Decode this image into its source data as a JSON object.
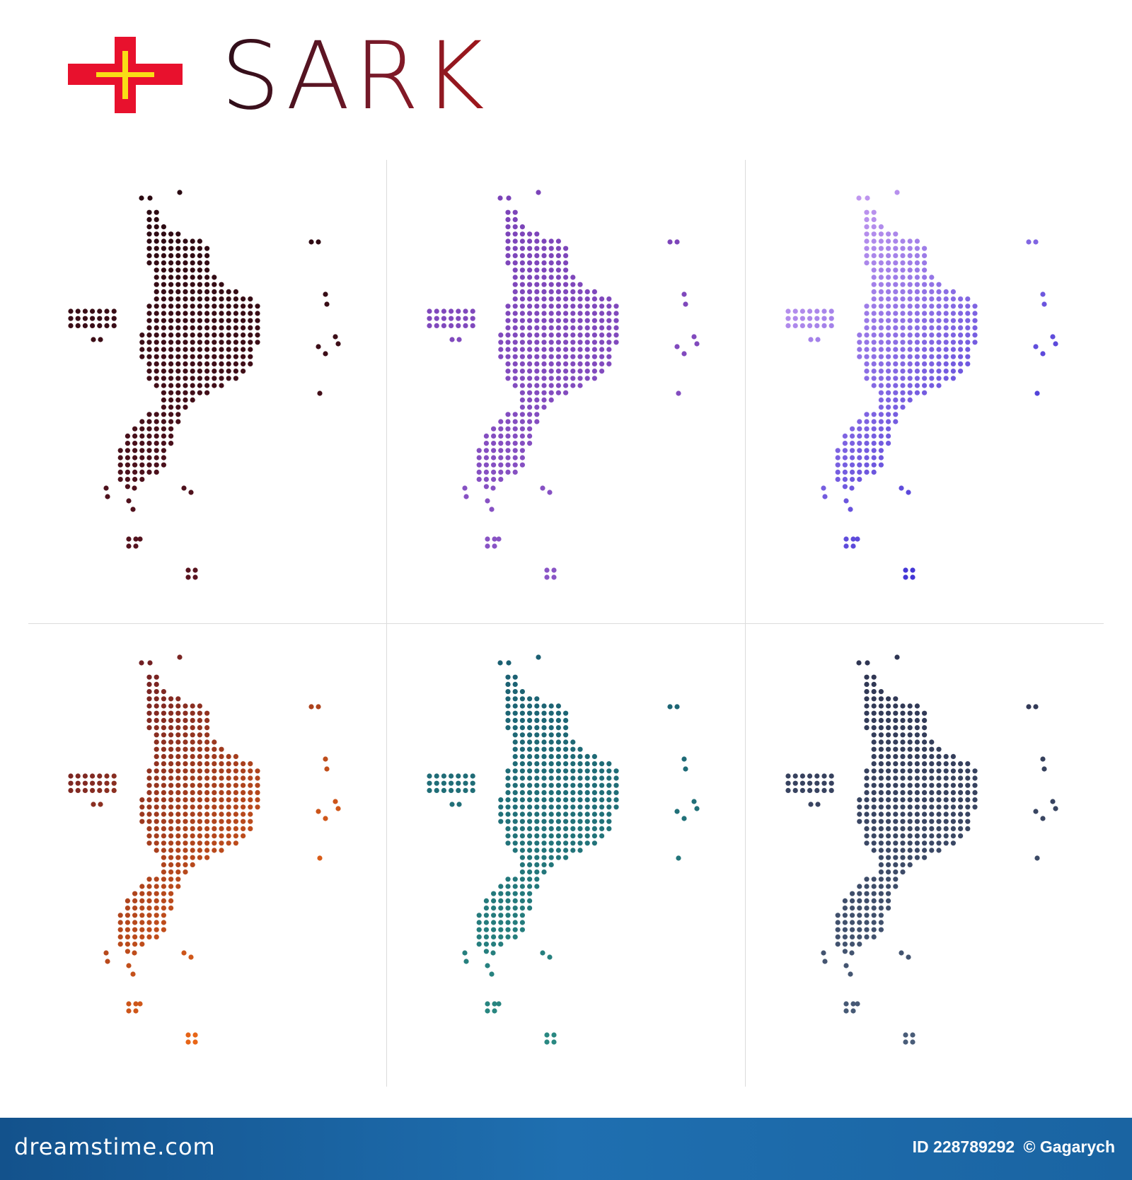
{
  "title": "SARK",
  "flag": {
    "icon": "guernsey-flag-icon",
    "colors": {
      "field": "#ffffff",
      "cross": "#e8112d",
      "inner_cross": "#f9dd16"
    }
  },
  "variants": [
    {
      "name": "dark-maroon",
      "colors": [
        "#2a0a12",
        "#5a1420"
      ],
      "gradient_direction": "vertical"
    },
    {
      "name": "purple",
      "colors": [
        "#7b43b8",
        "#8a55c6"
      ],
      "gradient_direction": "vertical"
    },
    {
      "name": "violet-blue",
      "colors": [
        "#d7a9f3",
        "#3a2fd4"
      ],
      "gradient_direction": "diagonal"
    },
    {
      "name": "maroon-orange",
      "colors": [
        "#5b1326",
        "#f06a16"
      ],
      "gradient_direction": "diagonal"
    },
    {
      "name": "teal",
      "colors": [
        "#1b5f72",
        "#2a8a82"
      ],
      "gradient_direction": "vertical"
    },
    {
      "name": "slate",
      "colors": [
        "#2e3552",
        "#4a5e7a"
      ],
      "gradient_direction": "vertical"
    }
  ],
  "footer": {
    "brand": "dreamstime.com",
    "id_label": "ID 228789292",
    "copyright": "© Gagarych"
  }
}
